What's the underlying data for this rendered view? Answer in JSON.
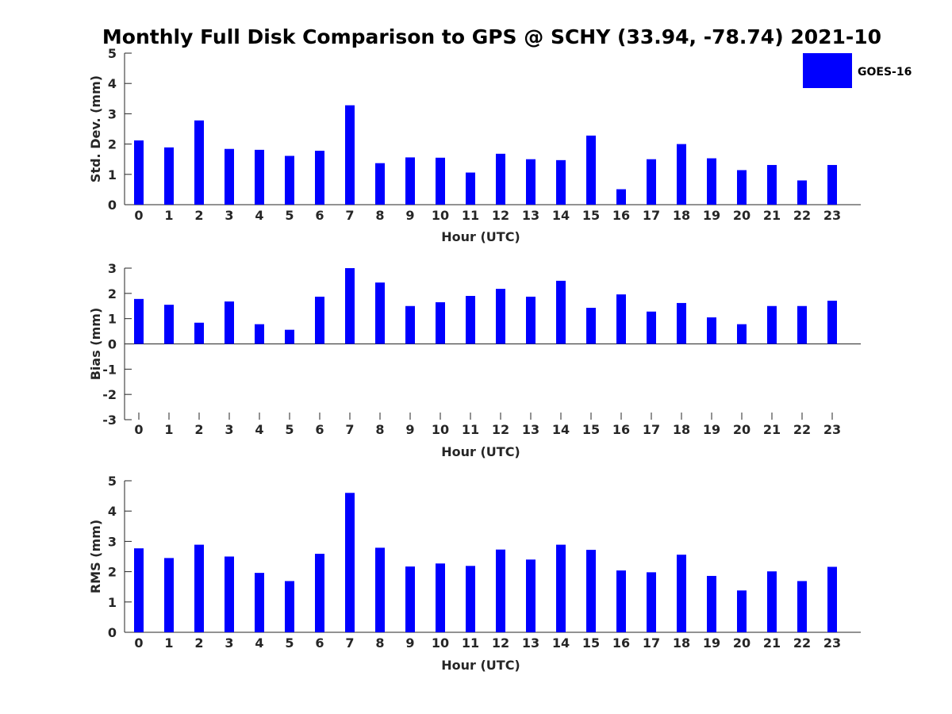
{
  "title": "Monthly Full Disk Comparison to GPS @ SCHY (33.94, -78.74) 2021-10",
  "legend": {
    "label": "GOES-16",
    "color": "#0000ff",
    "placement": "top-right"
  },
  "chart_data": [
    {
      "type": "bar",
      "name": "std-dev",
      "xlabel": "Hour (UTC)",
      "ylabel": "Std. Dev. (mm)",
      "ylim": [
        0,
        5
      ],
      "yticks": [
        "0",
        "1",
        "2",
        "3",
        "4",
        "5"
      ],
      "categories": [
        "0",
        "1",
        "2",
        "3",
        "4",
        "5",
        "6",
        "7",
        "8",
        "9",
        "10",
        "11",
        "12",
        "13",
        "14",
        "15",
        "16",
        "17",
        "18",
        "19",
        "20",
        "21",
        "22",
        "23"
      ],
      "series": [
        {
          "name": "GOES-16",
          "values": [
            2.12,
            1.89,
            2.78,
            1.84,
            1.81,
            1.61,
            1.78,
            3.28,
            1.37,
            1.56,
            1.55,
            1.06,
            1.68,
            1.5,
            1.47,
            2.28,
            0.51,
            1.5,
            2.0,
            1.53,
            1.14,
            1.31,
            0.8,
            1.31
          ]
        }
      ]
    },
    {
      "type": "bar",
      "name": "bias",
      "xlabel": "Hour (UTC)",
      "ylabel": "Bias (mm)",
      "ylim": [
        -3,
        3
      ],
      "yticks": [
        "-3",
        "-2",
        "-1",
        "0",
        "1",
        "2",
        "3"
      ],
      "categories": [
        "0",
        "1",
        "2",
        "3",
        "4",
        "5",
        "6",
        "7",
        "8",
        "9",
        "10",
        "11",
        "12",
        "13",
        "14",
        "15",
        "16",
        "17",
        "18",
        "19",
        "20",
        "21",
        "22",
        "23"
      ],
      "series": [
        {
          "name": "GOES-16",
          "values": [
            1.78,
            1.55,
            0.84,
            1.68,
            0.78,
            0.56,
            1.87,
            3.0,
            2.43,
            1.5,
            1.65,
            1.9,
            2.18,
            1.87,
            2.5,
            1.43,
            1.96,
            1.28,
            1.62,
            1.05,
            0.78,
            1.5,
            1.5,
            1.71
          ]
        }
      ]
    },
    {
      "type": "bar",
      "name": "rms",
      "xlabel": "Hour (UTC)",
      "ylabel": "RMS (mm)",
      "ylim": [
        0,
        5
      ],
      "yticks": [
        "0",
        "1",
        "2",
        "3",
        "4",
        "5"
      ],
      "categories": [
        "0",
        "1",
        "2",
        "3",
        "4",
        "5",
        "6",
        "7",
        "8",
        "9",
        "10",
        "11",
        "12",
        "13",
        "14",
        "15",
        "16",
        "17",
        "18",
        "19",
        "20",
        "21",
        "22",
        "23"
      ],
      "series": [
        {
          "name": "GOES-16",
          "values": [
            2.77,
            2.45,
            2.89,
            2.5,
            1.96,
            1.69,
            2.59,
            4.6,
            2.79,
            2.17,
            2.27,
            2.19,
            2.73,
            2.4,
            2.89,
            2.72,
            2.04,
            1.98,
            2.56,
            1.86,
            1.38,
            2.01,
            1.69,
            2.16
          ]
        }
      ]
    }
  ]
}
